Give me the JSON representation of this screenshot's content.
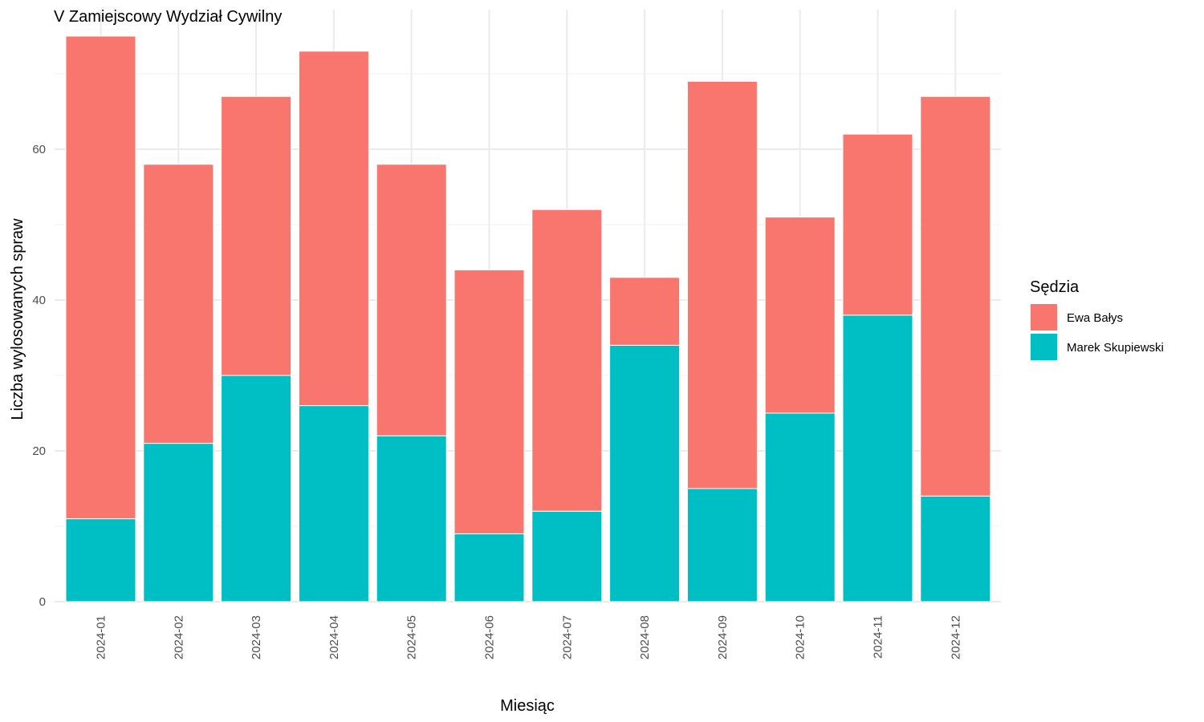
{
  "chart_data": {
    "type": "bar",
    "stacked": true,
    "title": "V Zamiejscowy Wydział Cywilny",
    "xlabel": "Miesiąc",
    "ylabel": "Liczba wylosowanych spraw",
    "ylim": [
      0,
      75
    ],
    "yticks": [
      0,
      20,
      40,
      60
    ],
    "grid": true,
    "categories": [
      "2024-01",
      "2024-02",
      "2024-03",
      "2024-04",
      "2024-05",
      "2024-06",
      "2024-07",
      "2024-08",
      "2024-09",
      "2024-10",
      "2024-11",
      "2024-12"
    ],
    "series": [
      {
        "name": "Marek Skupiewski",
        "color": "#00BFC4",
        "values": [
          11,
          21,
          30,
          26,
          22,
          9,
          12,
          34,
          15,
          25,
          38,
          14
        ]
      },
      {
        "name": "Ewa Bałys",
        "color": "#F8766D",
        "values": [
          64,
          37,
          37,
          47,
          36,
          35,
          40,
          9,
          54,
          26,
          24,
          53
        ]
      }
    ],
    "legend": {
      "title": "Sędzia",
      "position": "right",
      "entries": [
        "Ewa Bałys",
        "Marek Skupiewski"
      ]
    }
  }
}
